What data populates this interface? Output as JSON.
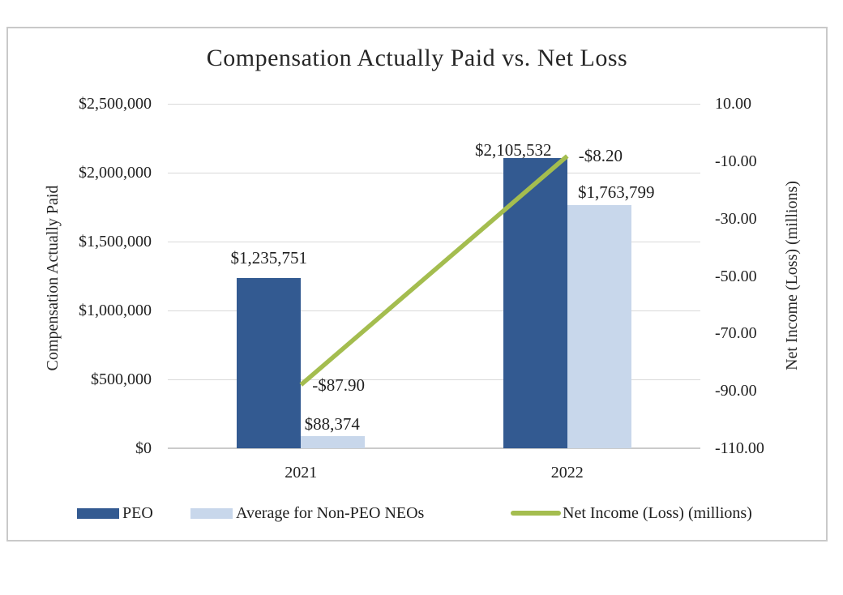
{
  "chart_data": {
    "type": "combo-bar-line",
    "title": "Compensation Actually Paid vs. Net Loss",
    "categories": [
      "2021",
      "2022"
    ],
    "series": [
      {
        "name": "PEO",
        "chart": "bar",
        "axis": "left",
        "color": "#335a91",
        "values": [
          1235751,
          2105532
        ],
        "data_labels": [
          "$1,235,751",
          "$2,105,532"
        ]
      },
      {
        "name": "Average for Non-PEO NEOs",
        "chart": "bar",
        "axis": "left",
        "color": "#c8d7eb",
        "values": [
          88374,
          1763799
        ],
        "data_labels": [
          "$88,374",
          "$1,763,799"
        ]
      },
      {
        "name": "Net Income (Loss) (millions)",
        "chart": "line",
        "axis": "right",
        "color": "#a4bd4f",
        "values": [
          -87.9,
          -8.2
        ],
        "data_labels": [
          "-$87.90",
          "-$8.20"
        ]
      }
    ],
    "left_axis": {
      "title": "Compensation Actually Paid",
      "min": 0,
      "max": 2500000,
      "ticks": [
        {
          "value": 2500000,
          "label": "$2,500,000"
        },
        {
          "value": 2000000,
          "label": "$2,000,000"
        },
        {
          "value": 1500000,
          "label": "$1,500,000"
        },
        {
          "value": 1000000,
          "label": "$1,000,000"
        },
        {
          "value": 500000,
          "label": "$500,000"
        },
        {
          "value": 0,
          "label": "$0"
        }
      ]
    },
    "right_axis": {
      "title": "Net Income  (Loss) (millions)",
      "min": -110,
      "max": 10,
      "ticks": [
        {
          "value": 10,
          "label": "10.00"
        },
        {
          "value": -10,
          "label": "-10.00"
        },
        {
          "value": -30,
          "label": "-30.00"
        },
        {
          "value": -50,
          "label": "-50.00"
        },
        {
          "value": -70,
          "label": "-70.00"
        },
        {
          "value": -90,
          "label": "-90.00"
        },
        {
          "value": -110,
          "label": "-110.00"
        }
      ]
    },
    "legend": {
      "position": "bottom",
      "entries": [
        "PEO",
        "Average for Non-PEO NEOs",
        "Net Income (Loss) (millions)"
      ]
    },
    "grid": true,
    "gridline_color": "#d9d9d9",
    "axis_line_color": "#cbcbcb",
    "frame_border_color": "#c9c9c9",
    "text_color": "#1f1f1f"
  }
}
